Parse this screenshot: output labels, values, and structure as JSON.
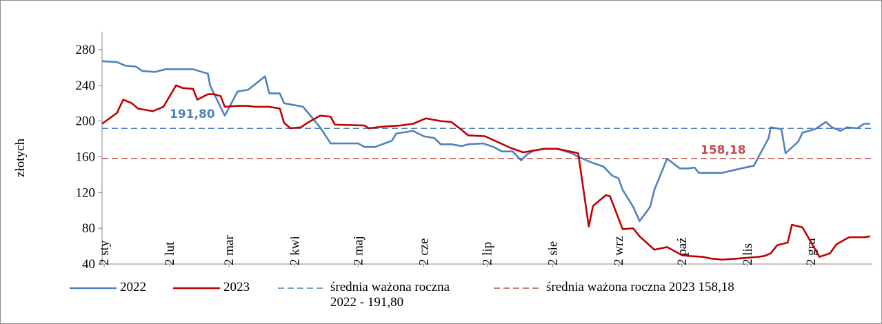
{
  "chart_data": {
    "type": "line",
    "ylabel": "złotych",
    "xlim": [
      0,
      364
    ],
    "ylim": [
      40,
      300
    ],
    "yticks": [
      40,
      80,
      120,
      160,
      200,
      240,
      280
    ],
    "xticks": [
      {
        "value": 1,
        "label": "2 sty"
      },
      {
        "value": 32,
        "label": "2 lut"
      },
      {
        "value": 60,
        "label": "2 mar"
      },
      {
        "value": 91,
        "label": "2 kwi"
      },
      {
        "value": 121,
        "label": "2 maj"
      },
      {
        "value": 152,
        "label": "2 cze"
      },
      {
        "value": 182,
        "label": "2 lip"
      },
      {
        "value": 213,
        "label": "2 sie"
      },
      {
        "value": 244,
        "label": "2 wrz"
      },
      {
        "value": 274,
        "label": "2 paź"
      },
      {
        "value": 305,
        "label": "2 lis"
      },
      {
        "value": 335,
        "label": "2 gru"
      }
    ],
    "series": [
      {
        "name": "2022",
        "color": "#4f81bd",
        "x": [
          0,
          7,
          11,
          16,
          19,
          25,
          30,
          43,
          50,
          51,
          58,
          64,
          69,
          77,
          79,
          84,
          86,
          95,
          103,
          108,
          121,
          124,
          129,
          137,
          139,
          147,
          152,
          157,
          160,
          165,
          170,
          173,
          180,
          185,
          189,
          194,
          198,
          201,
          204,
          209,
          215,
          222,
          225,
          232,
          237,
          241,
          244,
          246,
          251,
          254,
          259,
          261,
          267,
          273,
          277,
          280,
          282,
          293,
          302,
          308,
          315,
          316,
          321,
          323,
          329,
          331,
          337,
          342,
          345,
          349,
          352,
          357,
          360,
          363
        ],
        "values": [
          267,
          266,
          262,
          261,
          256,
          255,
          258,
          258,
          253,
          240,
          206,
          233,
          235,
          250,
          231,
          231,
          220,
          216,
          193,
          175,
          175,
          171,
          171,
          178,
          186,
          189,
          183,
          181,
          174,
          174,
          172,
          174,
          175,
          171,
          166,
          166,
          156,
          163,
          167,
          169,
          169,
          164,
          160,
          153,
          149,
          139,
          136,
          123,
          104,
          88,
          104,
          123,
          158,
          147,
          147,
          148,
          142,
          142,
          147,
          150,
          181,
          193,
          191,
          164,
          177,
          187,
          191,
          199,
          193,
          189,
          193,
          192,
          197,
          197
        ]
      },
      {
        "name": "2023",
        "color": "#c00000",
        "x": [
          0,
          7,
          10,
          14,
          17,
          24,
          29,
          35,
          38,
          43,
          45,
          50,
          53,
          56,
          58,
          64,
          69,
          72,
          79,
          84,
          86,
          89,
          94,
          97,
          103,
          108,
          110,
          124,
          126,
          134,
          141,
          147,
          153,
          160,
          165,
          170,
          173,
          181,
          193,
          199,
          209,
          215,
          225,
          230,
          232,
          238,
          240,
          246,
          251,
          254,
          261,
          267,
          274,
          277,
          284,
          288,
          293,
          300,
          310,
          313,
          316,
          319,
          324,
          326,
          331,
          339,
          344,
          347,
          353,
          360,
          363
        ],
        "values": [
          197,
          209,
          224,
          220,
          214,
          211,
          216,
          240,
          237,
          236,
          224,
          230,
          230,
          228,
          216,
          217,
          217,
          216,
          216,
          214,
          198,
          192,
          193,
          198,
          206,
          205,
          196,
          195,
          192,
          194,
          195,
          197,
          203,
          200,
          199,
          190,
          184,
          183,
          170,
          165,
          169,
          169,
          164,
          82,
          105,
          117,
          116,
          79,
          80,
          71,
          56,
          59,
          50,
          49,
          48,
          46,
          45,
          46,
          48,
          49,
          52,
          61,
          64,
          84,
          81,
          48,
          52,
          62,
          70,
          70,
          71
        ]
      }
    ],
    "averages": [
      {
        "name": "średnia ważona roczna 2022 - 191,80",
        "value": 191.8,
        "label": "191,80",
        "color": "#4f81bd"
      },
      {
        "name": "średnia ważona roczna 2023 158,18",
        "value": 158.18,
        "label": "158,18",
        "color": "#c0504d"
      }
    ]
  }
}
